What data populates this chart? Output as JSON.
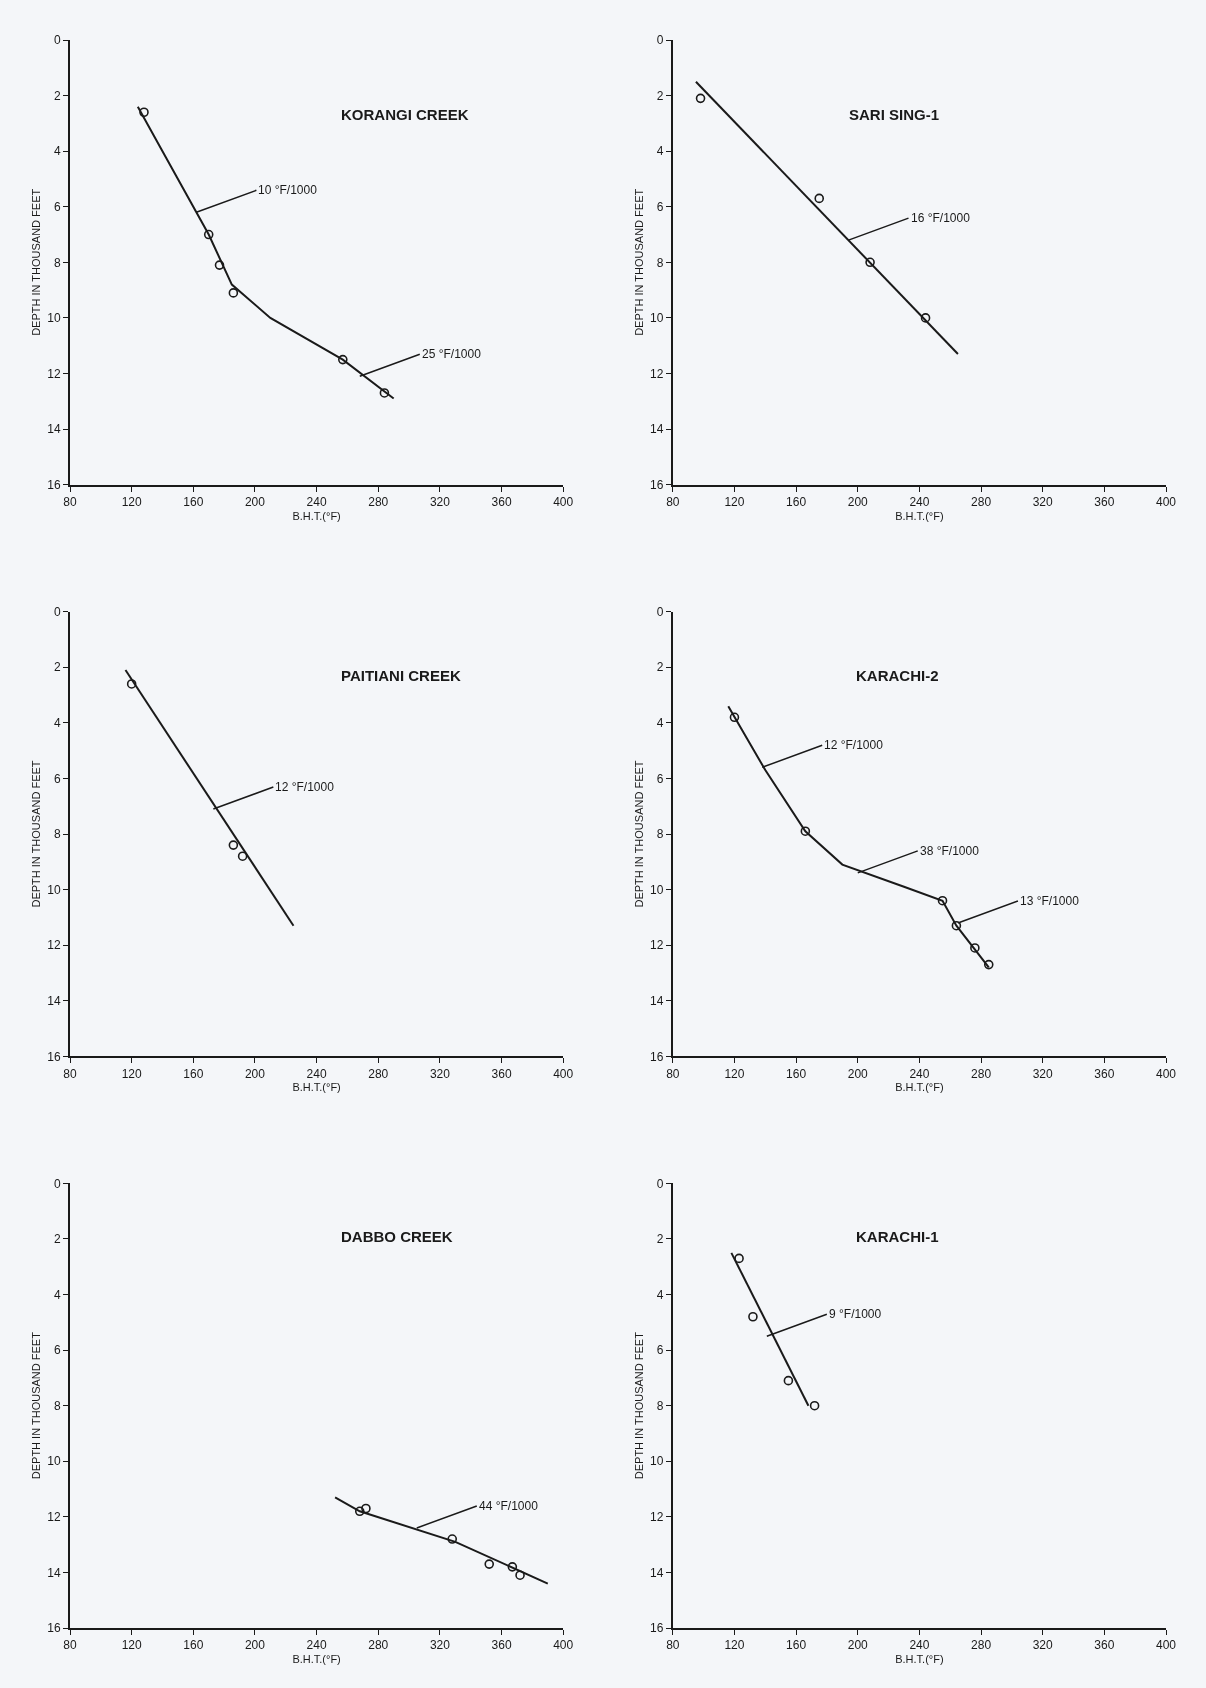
{
  "chart_data": [
    {
      "type": "scatter",
      "title": "KORANGI CREEK",
      "xlabel": "B.H.T.(°F)",
      "ylabel": "DEPTH IN THOUSAND FEET",
      "xlim": [
        80,
        400
      ],
      "ylim": [
        16,
        0
      ],
      "xticks": [
        80,
        120,
        160,
        200,
        240,
        280,
        320,
        360,
        400
      ],
      "yticks": [
        0,
        2,
        4,
        6,
        8,
        10,
        12,
        14,
        16
      ],
      "series": [
        {
          "type": "scatter",
          "marker": "circle",
          "color": "#1a1a1a",
          "x": [
            128,
            170,
            177,
            186,
            257,
            284
          ],
          "values": [
            2.6,
            7.0,
            8.1,
            9.1,
            11.5,
            12.7
          ]
        },
        {
          "type": "line",
          "marker": "none",
          "color": "#1a1a1a",
          "x": [
            124,
            140,
            170,
            185,
            210,
            257,
            290
          ],
          "values": [
            2.4,
            4.0,
            7.0,
            8.8,
            10.0,
            11.5,
            12.9
          ]
        }
      ],
      "annotations": [
        {
          "text": "10 °F/1000",
          "x": 162,
          "y": 6.2
        },
        {
          "text": "25 °F/1000",
          "x": 268,
          "y": 12.1
        }
      ]
    },
    {
      "type": "scatter",
      "title": "SARI SING-1",
      "xlabel": "B.H.T.(°F)",
      "ylabel": "DEPTH IN THOUSAND FEET",
      "xlim": [
        80,
        400
      ],
      "ylim": [
        16,
        0
      ],
      "xticks": [
        80,
        120,
        160,
        200,
        240,
        280,
        320,
        360,
        400
      ],
      "yticks": [
        0,
        2,
        4,
        6,
        8,
        10,
        12,
        14,
        16
      ],
      "series": [
        {
          "type": "scatter",
          "marker": "circle",
          "color": "#1a1a1a",
          "x": [
            98,
            175,
            208,
            244
          ],
          "values": [
            2.1,
            5.7,
            8.0,
            10.0
          ]
        },
        {
          "type": "line",
          "marker": "none",
          "color": "#1a1a1a",
          "x": [
            95,
            265
          ],
          "values": [
            1.5,
            11.3
          ]
        }
      ],
      "annotations": [
        {
          "text": "16 °F/1000",
          "x": 194,
          "y": 7.2
        }
      ]
    },
    {
      "type": "scatter",
      "title": "PAITIANI CREEK",
      "xlabel": "B.H.T.(°F)",
      "ylabel": "DEPTH IN THOUSAND FEET",
      "xlim": [
        80,
        400
      ],
      "ylim": [
        16,
        0
      ],
      "xticks": [
        80,
        120,
        160,
        200,
        240,
        280,
        320,
        360,
        400
      ],
      "yticks": [
        0,
        2,
        4,
        6,
        8,
        10,
        12,
        14,
        16
      ],
      "series": [
        {
          "type": "scatter",
          "marker": "circle",
          "color": "#1a1a1a",
          "x": [
            120,
            186,
            192
          ],
          "values": [
            2.6,
            8.4,
            8.8
          ]
        },
        {
          "type": "line",
          "marker": "none",
          "color": "#1a1a1a",
          "x": [
            116,
            225
          ],
          "values": [
            2.1,
            11.3
          ]
        }
      ],
      "annotations": [
        {
          "text": "12 °F/1000",
          "x": 173,
          "y": 7.1
        }
      ]
    },
    {
      "type": "scatter",
      "title": "KARACHI-2",
      "xlabel": "B.H.T.(°F)",
      "ylabel": "DEPTH IN THOUSAND FEET",
      "xlim": [
        80,
        400
      ],
      "ylim": [
        16,
        0
      ],
      "xticks": [
        80,
        120,
        160,
        200,
        240,
        280,
        320,
        360,
        400
      ],
      "yticks": [
        0,
        2,
        4,
        6,
        8,
        10,
        12,
        14,
        16
      ],
      "series": [
        {
          "type": "scatter",
          "marker": "circle",
          "color": "#1a1a1a",
          "x": [
            120,
            166,
            255,
            264,
            276,
            285
          ],
          "values": [
            3.8,
            7.9,
            10.4,
            11.3,
            12.1,
            12.7
          ]
        },
        {
          "type": "line",
          "marker": "none",
          "color": "#1a1a1a",
          "x": [
            116,
            140,
            166,
            190,
            230,
            255,
            264,
            285
          ],
          "values": [
            3.4,
            5.7,
            7.9,
            9.1,
            9.9,
            10.4,
            11.3,
            12.8
          ]
        }
      ],
      "annotations": [
        {
          "text": "12 °F/1000",
          "x": 138,
          "y": 5.6
        },
        {
          "text": "38 °F/1000",
          "x": 200,
          "y": 9.4
        },
        {
          "text": "13 °F/1000",
          "x": 265,
          "y": 11.2
        }
      ]
    },
    {
      "type": "scatter",
      "title": "DABBO CREEK",
      "xlabel": "B.H.T.(°F)",
      "ylabel": "DEPTH IN THOUSAND FEET",
      "xlim": [
        80,
        400
      ],
      "ylim": [
        16,
        0
      ],
      "xticks": [
        80,
        120,
        160,
        200,
        240,
        280,
        320,
        360,
        400
      ],
      "yticks": [
        0,
        2,
        4,
        6,
        8,
        10,
        12,
        14,
        16
      ],
      "series": [
        {
          "type": "scatter",
          "marker": "circle",
          "color": "#1a1a1a",
          "x": [
            268,
            272,
            328,
            352,
            367,
            372
          ],
          "values": [
            11.8,
            11.7,
            12.8,
            13.7,
            13.8,
            14.1
          ]
        },
        {
          "type": "line",
          "marker": "none",
          "color": "#1a1a1a",
          "x": [
            252,
            268,
            330,
            390
          ],
          "values": [
            11.3,
            11.8,
            12.9,
            14.4
          ]
        }
      ],
      "annotations": [
        {
          "text": "44 °F/1000",
          "x": 305,
          "y": 12.4
        }
      ]
    },
    {
      "type": "scatter",
      "title": "KARACHI-1",
      "xlabel": "B.H.T.(°F)",
      "ylabel": "DEPTH IN THOUSAND FEET",
      "xlim": [
        80,
        400
      ],
      "ylim": [
        16,
        0
      ],
      "xticks": [
        80,
        120,
        160,
        200,
        240,
        280,
        320,
        360,
        400
      ],
      "yticks": [
        0,
        2,
        4,
        6,
        8,
        10,
        12,
        14,
        16
      ],
      "series": [
        {
          "type": "scatter",
          "marker": "circle",
          "color": "#1a1a1a",
          "x": [
            123,
            132,
            155,
            172
          ],
          "values": [
            2.7,
            4.8,
            7.1,
            8.0
          ]
        },
        {
          "type": "line",
          "marker": "none",
          "color": "#1a1a1a",
          "x": [
            118,
            168
          ],
          "values": [
            2.5,
            8.0
          ]
        }
      ],
      "annotations": [
        {
          "text": "9 °F/1000",
          "x": 141,
          "y": 5.5
        }
      ]
    }
  ]
}
